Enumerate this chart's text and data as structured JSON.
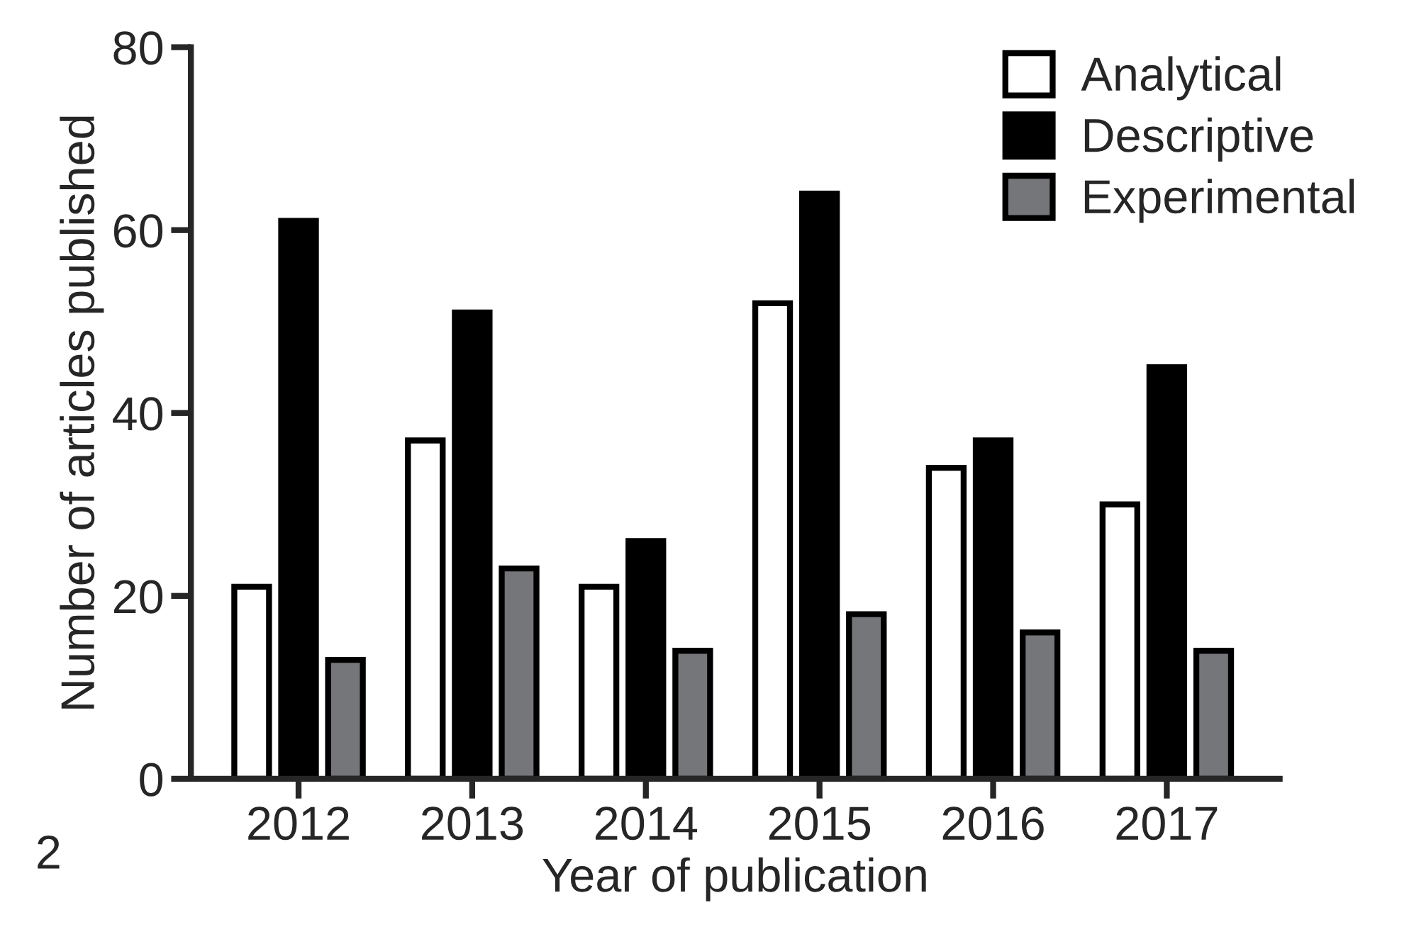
{
  "chart_data": {
    "type": "bar",
    "xlabel": "Year of publication",
    "ylabel": "Number of articles published",
    "categories": [
      "2012",
      "2013",
      "2014",
      "2015",
      "2016",
      "2017"
    ],
    "series": [
      {
        "name": "Analytical",
        "color": "#ffffff",
        "values": [
          21,
          37,
          21,
          52,
          34,
          30
        ]
      },
      {
        "name": "Descriptive",
        "color": "#000000",
        "values": [
          61,
          51,
          26,
          64,
          37,
          45
        ]
      },
      {
        "name": "Experimental",
        "color": "#75767a",
        "values": [
          13,
          23,
          14,
          18,
          16,
          14
        ]
      }
    ],
    "ylim": [
      0,
      80
    ],
    "yticks": [
      0,
      20,
      40,
      60,
      80
    ],
    "grid": false,
    "legend": "top right",
    "annotations": [
      "2"
    ]
  }
}
